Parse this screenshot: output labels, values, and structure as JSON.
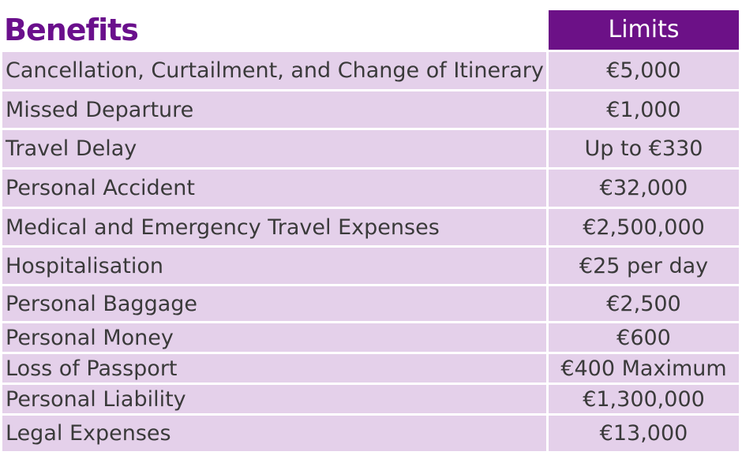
{
  "header": {
    "benefits_label": "Benefits",
    "limits_label": "Limits"
  },
  "rows": [
    {
      "benefit": "Cancellation, Curtailment, and Change of Itinerary",
      "limit": "€5,000"
    },
    {
      "benefit": "Missed Departure",
      "limit": "€1,000"
    },
    {
      "benefit": "Travel Delay",
      "limit": "Up to €330"
    },
    {
      "benefit": "Personal Accident",
      "limit": "€32,000"
    },
    {
      "benefit": "Medical and Emergency Travel Expenses",
      "limit": "€2,500,000"
    },
    {
      "benefit": "Hospitalisation",
      "limit": "€25 per day"
    },
    {
      "benefit": "Personal Baggage",
      "limit": "€2,500"
    },
    {
      "benefit": "Personal Money",
      "limit": "€600"
    },
    {
      "benefit": "Loss of Passport",
      "limit": "€400 Maximum"
    },
    {
      "benefit": "Personal Liability",
      "limit": "€1,300,000"
    },
    {
      "benefit": "Legal Expenses",
      "limit": "€13,000"
    }
  ],
  "colors": {
    "header_accent": "#6c1187",
    "row_background": "#e4d0ea",
    "text": "#3a3a3a"
  }
}
